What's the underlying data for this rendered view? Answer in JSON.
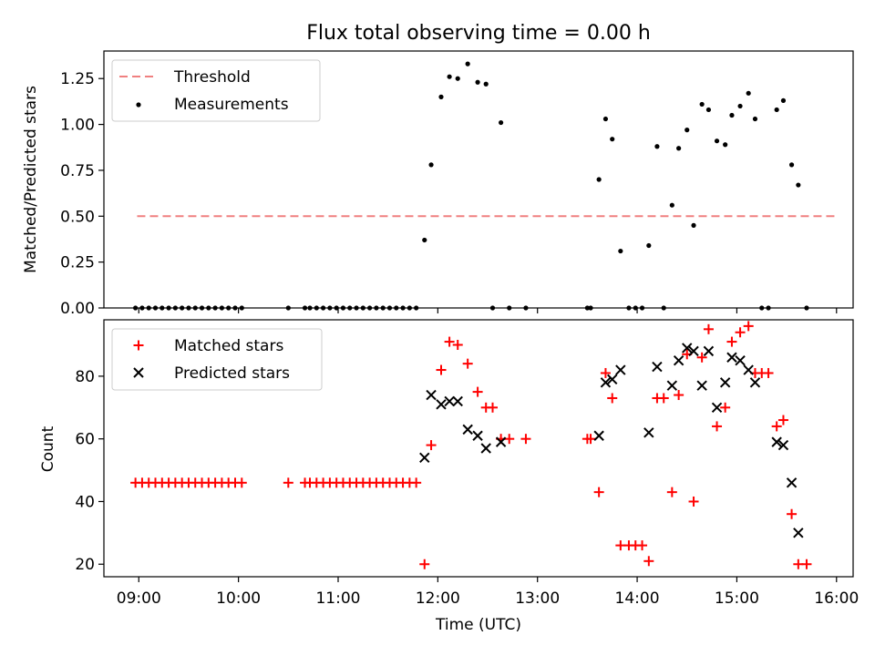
{
  "chart_data": [
    {
      "type": "scatter",
      "title": "Flux total observing time = 0.00 h",
      "xlabel": "",
      "ylabel": "Matched/Predicted stars",
      "xlim": [
        "08:39",
        "16:10"
      ],
      "ylim": [
        0,
        1.4
      ],
      "yticks": [
        {
          "value": 0,
          "label": "0.00"
        },
        {
          "value": 0.25,
          "label": "0.25"
        },
        {
          "value": 0.5,
          "label": "0.50"
        },
        {
          "value": 0.75,
          "label": "0.75"
        },
        {
          "value": 1.0,
          "label": "1.00"
        },
        {
          "value": 1.25,
          "label": "1.25"
        }
      ],
      "xticks": [
        "09:00",
        "10:00",
        "11:00",
        "12:00",
        "13:00",
        "14:00",
        "15:00",
        "16:00"
      ],
      "legend_position": "top-left",
      "threshold": {
        "name": "Threshold",
        "y": 0.5,
        "x_range": [
          "08:59",
          "16:00"
        ],
        "color": "#f08080"
      },
      "series": [
        {
          "name": "Measurements",
          "color": "#000000",
          "points": [
            [
              "08:58",
              0
            ],
            [
              "09:02",
              0
            ],
            [
              "09:06",
              0
            ],
            [
              "09:10",
              0
            ],
            [
              "09:14",
              0
            ],
            [
              "09:18",
              0
            ],
            [
              "09:22",
              0
            ],
            [
              "09:26",
              0
            ],
            [
              "09:30",
              0
            ],
            [
              "09:34",
              0
            ],
            [
              "09:38",
              0
            ],
            [
              "09:42",
              0
            ],
            [
              "09:46",
              0
            ],
            [
              "09:50",
              0
            ],
            [
              "09:54",
              0
            ],
            [
              "09:58",
              0
            ],
            [
              "10:02",
              0
            ],
            [
              "10:30",
              0
            ],
            [
              "10:40",
              0
            ],
            [
              "10:43",
              0
            ],
            [
              "10:47",
              0
            ],
            [
              "10:51",
              0
            ],
            [
              "10:55",
              0
            ],
            [
              "10:59",
              0
            ],
            [
              "11:03",
              0
            ],
            [
              "11:07",
              0
            ],
            [
              "11:11",
              0
            ],
            [
              "11:15",
              0
            ],
            [
              "11:19",
              0
            ],
            [
              "11:23",
              0
            ],
            [
              "11:27",
              0
            ],
            [
              "11:31",
              0
            ],
            [
              "11:35",
              0
            ],
            [
              "11:39",
              0
            ],
            [
              "11:43",
              0
            ],
            [
              "11:47",
              0
            ],
            [
              "11:52",
              0.37
            ],
            [
              "11:56",
              0.78
            ],
            [
              "12:02",
              1.15
            ],
            [
              "12:07",
              1.26
            ],
            [
              "12:12",
              1.25
            ],
            [
              "12:18",
              1.33
            ],
            [
              "12:24",
              1.23
            ],
            [
              "12:29",
              1.22
            ],
            [
              "12:33",
              0
            ],
            [
              "12:38",
              1.01
            ],
            [
              "12:43",
              0
            ],
            [
              "12:53",
              0
            ],
            [
              "13:30",
              0
            ],
            [
              "13:32",
              0
            ],
            [
              "13:37",
              0.7
            ],
            [
              "13:41",
              1.03
            ],
            [
              "13:45",
              0.92
            ],
            [
              "13:50",
              0.31
            ],
            [
              "13:55",
              0
            ],
            [
              "13:59",
              0
            ],
            [
              "14:03",
              0
            ],
            [
              "14:07",
              0.34
            ],
            [
              "14:12",
              0.88
            ],
            [
              "14:16",
              0
            ],
            [
              "14:21",
              0.56
            ],
            [
              "14:25",
              0.87
            ],
            [
              "14:30",
              0.97
            ],
            [
              "14:34",
              0.45
            ],
            [
              "14:39",
              1.11
            ],
            [
              "14:43",
              1.08
            ],
            [
              "14:48",
              0.91
            ],
            [
              "14:53",
              0.89
            ],
            [
              "14:57",
              1.05
            ],
            [
              "15:02",
              1.1
            ],
            [
              "15:07",
              1.17
            ],
            [
              "15:11",
              1.03
            ],
            [
              "15:15",
              0
            ],
            [
              "15:19",
              0
            ],
            [
              "15:24",
              1.08
            ],
            [
              "15:28",
              1.13
            ],
            [
              "15:33",
              0.78
            ],
            [
              "15:37",
              0.67
            ],
            [
              "15:42",
              0
            ]
          ]
        }
      ]
    },
    {
      "type": "scatter",
      "title": "",
      "xlabel": "Time (UTC)",
      "ylabel": "Count",
      "xlim": [
        "08:39",
        "16:10"
      ],
      "ylim": [
        16,
        98
      ],
      "yticks": [
        {
          "value": 20,
          "label": "20"
        },
        {
          "value": 40,
          "label": "40"
        },
        {
          "value": 60,
          "label": "60"
        },
        {
          "value": 80,
          "label": "80"
        }
      ],
      "xticks": [
        "09:00",
        "10:00",
        "11:00",
        "12:00",
        "13:00",
        "14:00",
        "15:00",
        "16:00"
      ],
      "legend_position": "top-left",
      "series": [
        {
          "name": "Matched stars",
          "color": "#ff0000",
          "marker": "plus",
          "points": [
            [
              "08:58",
              46
            ],
            [
              "09:02",
              46
            ],
            [
              "09:06",
              46
            ],
            [
              "09:10",
              46
            ],
            [
              "09:14",
              46
            ],
            [
              "09:18",
              46
            ],
            [
              "09:22",
              46
            ],
            [
              "09:26",
              46
            ],
            [
              "09:30",
              46
            ],
            [
              "09:34",
              46
            ],
            [
              "09:38",
              46
            ],
            [
              "09:42",
              46
            ],
            [
              "09:46",
              46
            ],
            [
              "09:50",
              46
            ],
            [
              "09:54",
              46
            ],
            [
              "09:58",
              46
            ],
            [
              "10:02",
              46
            ],
            [
              "10:30",
              46
            ],
            [
              "10:40",
              46
            ],
            [
              "10:43",
              46
            ],
            [
              "10:47",
              46
            ],
            [
              "10:51",
              46
            ],
            [
              "10:55",
              46
            ],
            [
              "10:59",
              46
            ],
            [
              "11:03",
              46
            ],
            [
              "11:07",
              46
            ],
            [
              "11:11",
              46
            ],
            [
              "11:15",
              46
            ],
            [
              "11:19",
              46
            ],
            [
              "11:23",
              46
            ],
            [
              "11:27",
              46
            ],
            [
              "11:31",
              46
            ],
            [
              "11:35",
              46
            ],
            [
              "11:39",
              46
            ],
            [
              "11:43",
              46
            ],
            [
              "11:47",
              46
            ],
            [
              "11:52",
              20
            ],
            [
              "11:56",
              58
            ],
            [
              "12:02",
              82
            ],
            [
              "12:07",
              91
            ],
            [
              "12:12",
              90
            ],
            [
              "12:18",
              84
            ],
            [
              "12:24",
              75
            ],
            [
              "12:29",
              70
            ],
            [
              "12:33",
              70
            ],
            [
              "12:38",
              60
            ],
            [
              "12:43",
              60
            ],
            [
              "12:53",
              60
            ],
            [
              "13:30",
              60
            ],
            [
              "13:32",
              60
            ],
            [
              "13:37",
              43
            ],
            [
              "13:41",
              81
            ],
            [
              "13:45",
              73
            ],
            [
              "13:50",
              26
            ],
            [
              "13:55",
              26
            ],
            [
              "13:59",
              26
            ],
            [
              "14:03",
              26
            ],
            [
              "14:07",
              21
            ],
            [
              "14:12",
              73
            ],
            [
              "14:16",
              73
            ],
            [
              "14:21",
              43
            ],
            [
              "14:25",
              74
            ],
            [
              "14:30",
              87
            ],
            [
              "14:34",
              40
            ],
            [
              "14:39",
              86
            ],
            [
              "14:43",
              95
            ],
            [
              "14:48",
              64
            ],
            [
              "14:53",
              70
            ],
            [
              "14:57",
              91
            ],
            [
              "15:02",
              94
            ],
            [
              "15:07",
              96
            ],
            [
              "15:11",
              81
            ],
            [
              "15:15",
              81
            ],
            [
              "15:19",
              81
            ],
            [
              "15:24",
              64
            ],
            [
              "15:28",
              66
            ],
            [
              "15:33",
              36
            ],
            [
              "15:37",
              20
            ],
            [
              "15:42",
              20
            ]
          ]
        },
        {
          "name": "Predicted stars",
          "color": "#000000",
          "marker": "x",
          "points": [
            [
              "11:52",
              54
            ],
            [
              "11:56",
              74
            ],
            [
              "12:02",
              71
            ],
            [
              "12:07",
              72
            ],
            [
              "12:12",
              72
            ],
            [
              "12:18",
              63
            ],
            [
              "12:24",
              61
            ],
            [
              "12:29",
              57
            ],
            [
              "12:38",
              59
            ],
            [
              "13:37",
              61
            ],
            [
              "13:41",
              78
            ],
            [
              "13:45",
              79
            ],
            [
              "13:50",
              82
            ],
            [
              "14:07",
              62
            ],
            [
              "14:12",
              83
            ],
            [
              "14:21",
              77
            ],
            [
              "14:25",
              85
            ],
            [
              "14:30",
              89
            ],
            [
              "14:34",
              88
            ],
            [
              "14:39",
              77
            ],
            [
              "14:43",
              88
            ],
            [
              "14:48",
              70
            ],
            [
              "14:53",
              78
            ],
            [
              "14:57",
              86
            ],
            [
              "15:02",
              85
            ],
            [
              "15:07",
              82
            ],
            [
              "15:11",
              78
            ],
            [
              "15:24",
              59
            ],
            [
              "15:28",
              58
            ],
            [
              "15:33",
              46
            ],
            [
              "15:37",
              30
            ]
          ]
        }
      ]
    }
  ]
}
